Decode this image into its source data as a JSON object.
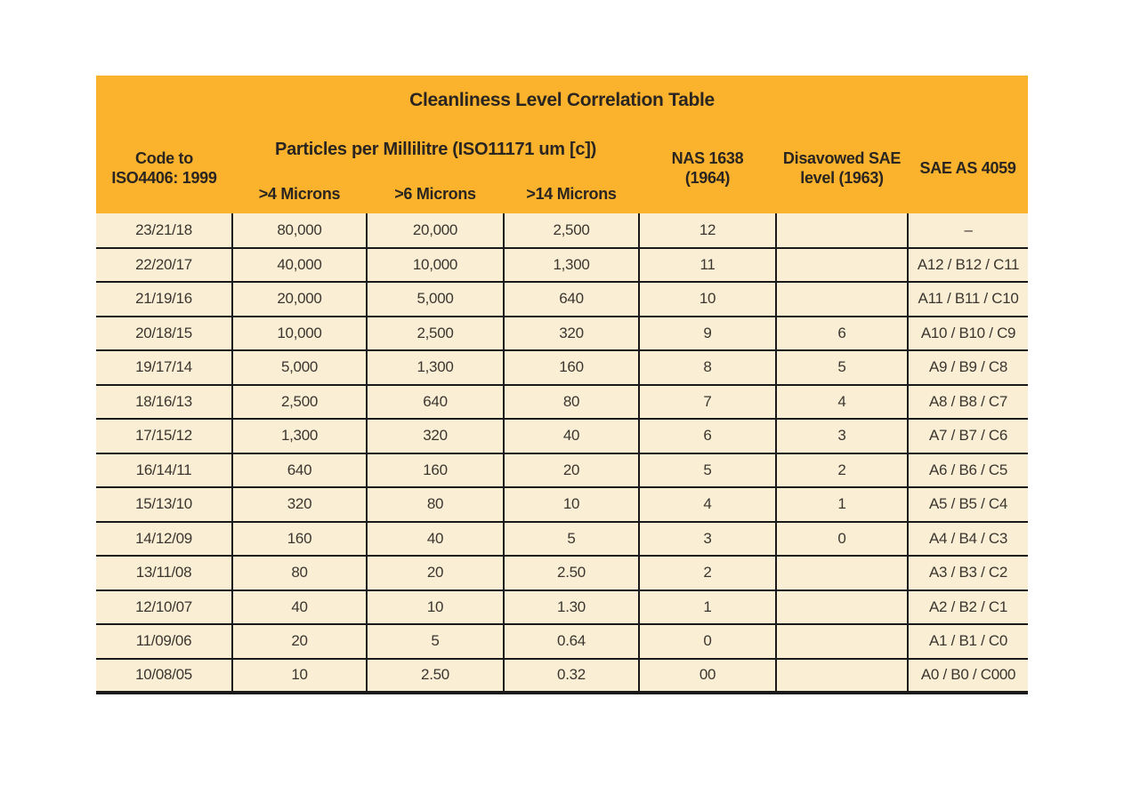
{
  "colors": {
    "orange": "#FBB32D",
    "cream": "#FAEFD5",
    "line": "#1A1A1A",
    "ink": "#2A2520",
    "body-ink": "#3B362F",
    "page-bg": "#FFFFFF"
  },
  "table": {
    "title": "Cleanliness Level Correlation Table",
    "headers": {
      "iso_code": "Code to\nISO4406: 1999",
      "particles_group": "Particles per Millilitre (ISO11171 um [c])",
      "micron4": ">4 Microns",
      "micron6": ">6 Microns",
      "micron14": ">14 Microns",
      "nas": "NAS 1638\n(1964)",
      "sae_disavowed": "Disavowed SAE\nlevel (1963)",
      "sae_as": "SAE AS 4059"
    },
    "rows": [
      {
        "iso": "23/21/18",
        "m4": "80,000",
        "m6": "20,000",
        "m14": "2,500",
        "nas": "12",
        "sae1963": "",
        "sae4059": "–"
      },
      {
        "iso": "22/20/17",
        "m4": "40,000",
        "m6": "10,000",
        "m14": "1,300",
        "nas": "11",
        "sae1963": "",
        "sae4059": "A12 / B12 / C11"
      },
      {
        "iso": "21/19/16",
        "m4": "20,000",
        "m6": "5,000",
        "m14": "640",
        "nas": "10",
        "sae1963": "",
        "sae4059": "A11 / B11 / C10"
      },
      {
        "iso": "20/18/15",
        "m4": "10,000",
        "m6": "2,500",
        "m14": "320",
        "nas": "9",
        "sae1963": "6",
        "sae4059": "A10 / B10 / C9"
      },
      {
        "iso": "19/17/14",
        "m4": "5,000",
        "m6": "1,300",
        "m14": "160",
        "nas": "8",
        "sae1963": "5",
        "sae4059": "A9 / B9 / C8"
      },
      {
        "iso": "18/16/13",
        "m4": "2,500",
        "m6": "640",
        "m14": "80",
        "nas": "7",
        "sae1963": "4",
        "sae4059": "A8 / B8 / C7"
      },
      {
        "iso": "17/15/12",
        "m4": "1,300",
        "m6": "320",
        "m14": "40",
        "nas": "6",
        "sae1963": "3",
        "sae4059": "A7 / B7 / C6"
      },
      {
        "iso": "16/14/11",
        "m4": "640",
        "m6": "160",
        "m14": "20",
        "nas": "5",
        "sae1963": "2",
        "sae4059": "A6 / B6 / C5"
      },
      {
        "iso": "15/13/10",
        "m4": "320",
        "m6": "80",
        "m14": "10",
        "nas": "4",
        "sae1963": "1",
        "sae4059": "A5 / B5 / C4"
      },
      {
        "iso": "14/12/09",
        "m4": "160",
        "m6": "40",
        "m14": "5",
        "nas": "3",
        "sae1963": "0",
        "sae4059": "A4 / B4 / C3"
      },
      {
        "iso": "13/11/08",
        "m4": "80",
        "m6": "20",
        "m14": "2.50",
        "nas": "2",
        "sae1963": "",
        "sae4059": "A3 / B3 / C2"
      },
      {
        "iso": "12/10/07",
        "m4": "40",
        "m6": "10",
        "m14": "1.30",
        "nas": "1",
        "sae1963": "",
        "sae4059": "A2 / B2 / C1"
      },
      {
        "iso": "11/09/06",
        "m4": "20",
        "m6": "5",
        "m14": "0.64",
        "nas": "0",
        "sae1963": "",
        "sae4059": "A1 / B1 / C0"
      },
      {
        "iso": "10/08/05",
        "m4": "10",
        "m6": "2.50",
        "m14": "0.32",
        "nas": "00",
        "sae1963": "",
        "sae4059": "A0 / B0 / C000"
      }
    ]
  }
}
